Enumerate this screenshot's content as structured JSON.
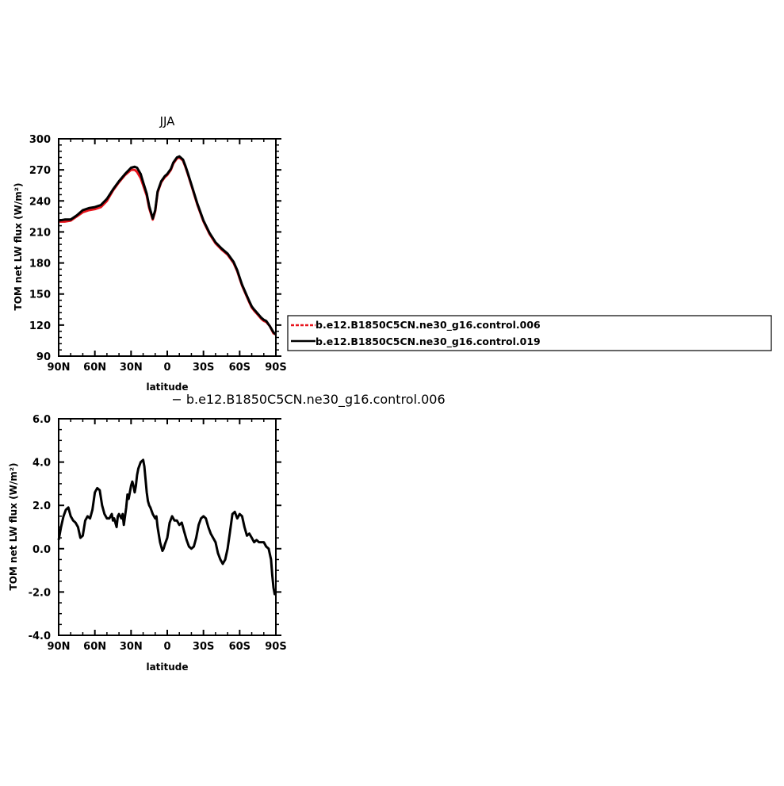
{
  "chart_data": [
    {
      "type": "line",
      "title": "JJA",
      "xlabel": "latitude",
      "ylabel": "TOM net LW flux (W/m²)",
      "xlim": [
        90,
        -90
      ],
      "ylim": [
        90,
        300
      ],
      "x_ticks": [
        90,
        60,
        30,
        0,
        -30,
        -60,
        -90
      ],
      "x_tick_labels": [
        "90N",
        "60N",
        "30N",
        "0",
        "30S",
        "60S",
        "90S"
      ],
      "y_ticks": [
        90,
        120,
        150,
        180,
        210,
        240,
        270,
        300
      ],
      "y_tick_labels": [
        "90",
        "120",
        "150",
        "180",
        "210",
        "240",
        "270",
        "300"
      ],
      "legend": {
        "placement": "right",
        "entries": [
          {
            "label": "b.e12.B1850C5CN.ne30_g16.control.006",
            "color": "#e8141c",
            "style": "dashed"
          },
          {
            "label": "b.e12.B1850C5CN.ne30_g16.control.019",
            "color": "#000000",
            "style": "solid"
          }
        ]
      },
      "series": [
        {
          "name": "b.e12.B1850C5CN.ne30_g16.control.006",
          "color": "#e8141c",
          "x": [
            90,
            85,
            80,
            75,
            70,
            65,
            60,
            55,
            50,
            45,
            40,
            35,
            30,
            27,
            25,
            22,
            20,
            17,
            15,
            12,
            10,
            8,
            5,
            2,
            0,
            -3,
            -5,
            -8,
            -10,
            -13,
            -15,
            -17,
            -20,
            -25,
            -30,
            -35,
            -40,
            -45,
            -50,
            -55,
            -58,
            -60,
            -62,
            -65,
            -68,
            -70,
            -72,
            -75,
            -78,
            -80,
            -82,
            -85,
            -88,
            -90
          ],
          "values": [
            220,
            220,
            221,
            225,
            229,
            231,
            232,
            234,
            240,
            250,
            258,
            265,
            270,
            270,
            268,
            262,
            255,
            245,
            233,
            222,
            230,
            248,
            258,
            263,
            265,
            270,
            276,
            281,
            282,
            279,
            273,
            266,
            255,
            236,
            220,
            208,
            199,
            193,
            188,
            180,
            172,
            165,
            158,
            150,
            142,
            137,
            134,
            130,
            126,
            124,
            123,
            119,
            112,
            111
          ]
        },
        {
          "name": "b.e12.B1850C5CN.ne30_g16.control.019",
          "color": "#000000",
          "x": [
            90,
            85,
            80,
            75,
            70,
            65,
            60,
            55,
            50,
            45,
            40,
            35,
            30,
            27,
            25,
            22,
            20,
            17,
            15,
            12,
            10,
            8,
            5,
            2,
            0,
            -3,
            -5,
            -8,
            -10,
            -13,
            -15,
            -17,
            -20,
            -25,
            -30,
            -35,
            -40,
            -45,
            -50,
            -55,
            -58,
            -60,
            -62,
            -65,
            -68,
            -70,
            -72,
            -75,
            -78,
            -80,
            -82,
            -85,
            -88,
            -90
          ],
          "values": [
            221,
            222,
            222,
            226,
            231,
            233,
            234,
            236,
            242,
            251,
            259,
            266,
            272,
            273,
            272,
            266,
            258,
            247,
            235,
            223,
            231,
            249,
            259,
            264,
            266,
            271,
            277,
            282,
            283,
            280,
            274,
            267,
            256,
            237,
            221,
            209,
            200,
            194,
            189,
            181,
            173,
            166,
            159,
            151,
            143,
            138,
            135,
            131,
            127,
            125,
            124,
            119,
            113,
            111
          ]
        }
      ]
    },
    {
      "type": "line",
      "title": "− b.e12.B1850C5CN.ne30_g16.control.006",
      "xlabel": "latitude",
      "ylabel": "TOM net LW flux (W/m²)",
      "xlim": [
        90,
        -90
      ],
      "ylim": [
        -4.0,
        6.0
      ],
      "x_ticks": [
        90,
        60,
        30,
        0,
        -30,
        -60,
        -90
      ],
      "x_tick_labels": [
        "90N",
        "60N",
        "30N",
        "0",
        "30S",
        "60S",
        "90S"
      ],
      "y_ticks": [
        -4,
        -2,
        0,
        2,
        4,
        6
      ],
      "y_tick_labels": [
        "-4.0",
        "-2.0",
        "0.0",
        "2.0",
        "4.0",
        "6.0"
      ],
      "series": [
        {
          "color": "#000000",
          "x": [
            90,
            88,
            86,
            84,
            82,
            80,
            78,
            76,
            74,
            72,
            70,
            68,
            66,
            64,
            62,
            60,
            58,
            56,
            54,
            52,
            50,
            48,
            46,
            45,
            44,
            42,
            41,
            40,
            38,
            37,
            36,
            34,
            33,
            32,
            30,
            29,
            28,
            27,
            26,
            25,
            24,
            22,
            20,
            19,
            18,
            17,
            16,
            15,
            14,
            12,
            10,
            9,
            8,
            6,
            5,
            4,
            3,
            2,
            0,
            -2,
            -4,
            -6,
            -8,
            -10,
            -12,
            -14,
            -16,
            -18,
            -20,
            -22,
            -24,
            -26,
            -28,
            -30,
            -32,
            -34,
            -36,
            -38,
            -40,
            -42,
            -44,
            -46,
            -48,
            -50,
            -52,
            -54,
            -56,
            -58,
            -60,
            -62,
            -64,
            -66,
            -68,
            -70,
            -72,
            -74,
            -76,
            -78,
            -80,
            -82,
            -84,
            -86,
            -87,
            -88,
            -89,
            -90
          ],
          "values": [
            0.4,
            1.0,
            1.5,
            1.8,
            1.9,
            1.5,
            1.3,
            1.2,
            1.0,
            0.5,
            0.6,
            1.3,
            1.5,
            1.4,
            1.8,
            2.6,
            2.8,
            2.7,
            2.0,
            1.6,
            1.4,
            1.4,
            1.6,
            1.3,
            1.4,
            1.0,
            1.5,
            1.6,
            1.4,
            1.6,
            1.1,
            1.9,
            2.5,
            2.3,
            2.9,
            3.1,
            2.9,
            2.6,
            2.9,
            3.4,
            3.7,
            4.0,
            4.1,
            3.8,
            3.2,
            2.6,
            2.2,
            2.0,
            1.9,
            1.6,
            1.4,
            1.5,
            1.0,
            0.3,
            0.1,
            -0.1,
            0.0,
            0.2,
            0.5,
            1.2,
            1.5,
            1.3,
            1.3,
            1.1,
            1.2,
            0.8,
            0.4,
            0.1,
            0.0,
            0.1,
            0.5,
            1.1,
            1.4,
            1.5,
            1.4,
            1.0,
            0.7,
            0.5,
            0.3,
            -0.2,
            -0.5,
            -0.7,
            -0.5,
            0.0,
            0.8,
            1.6,
            1.7,
            1.4,
            1.6,
            1.5,
            1.0,
            0.6,
            0.7,
            0.5,
            0.3,
            0.4,
            0.3,
            0.3,
            0.3,
            0.1,
            0.0,
            -0.5,
            -1.2,
            -1.8,
            -2.1,
            -2.0
          ]
        }
      ]
    }
  ]
}
